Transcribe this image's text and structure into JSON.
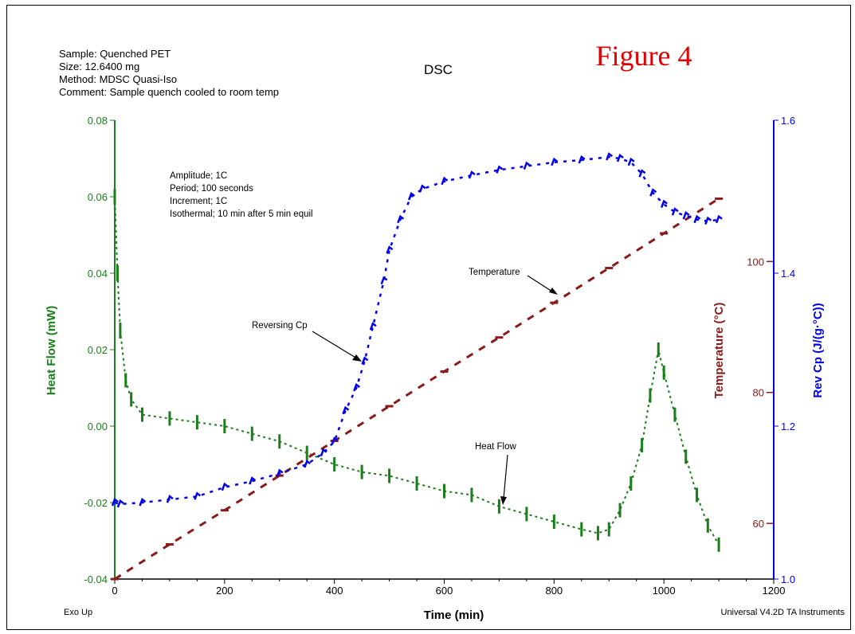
{
  "header": {
    "sample_lines": [
      "Sample: Quenched PET",
      "Size:  12.6400 mg",
      "Method: MDSC Quasi-Iso",
      "Comment: Sample quench cooled to room temp"
    ],
    "title": "DSC",
    "figure_label": "Figure 4"
  },
  "notes": {
    "params": [
      "Amplitude; 1C",
      "Period; 100 seconds",
      "Increment; 1C",
      "Isothermal; 10 min after 5 min equil"
    ]
  },
  "annotations": {
    "temperature": "Temperature",
    "reversing_cp": "Reversing Cp",
    "heat_flow": "Heat Flow"
  },
  "footer": {
    "exo": "Exo Up",
    "instrument": "Universal V4.2D TA Instruments"
  },
  "colors": {
    "heat_flow": "#1a7f1a",
    "temperature": "#8b1a1a",
    "rev_cp": "#0000ee",
    "axis": "#000000"
  },
  "chart_data": {
    "type": "scatter",
    "title": "DSC",
    "x_axis": {
      "label": "Time (min)",
      "range": [
        0,
        1200
      ],
      "ticks": [
        0,
        200,
        400,
        600,
        800,
        1000,
        1200
      ]
    },
    "y_left": {
      "label": "Heat Flow (mW)",
      "range": [
        -0.04,
        0.08
      ],
      "ticks": [
        -0.04,
        -0.02,
        0.0,
        0.02,
        0.04,
        0.06,
        0.08
      ],
      "tick_labels": [
        "-0.04",
        "-0.02",
        "0.00",
        "0.02",
        "0.04",
        "0.06",
        "0.08"
      ]
    },
    "y_temp": {
      "label": "Temperature (°C)",
      "ticks": [
        60,
        80,
        100
      ]
    },
    "y_right": {
      "label": "Rev Cp (J/(g·°C))",
      "range": [
        1.0,
        1.6
      ],
      "ticks": [
        1.0,
        1.2,
        1.4,
        1.6
      ],
      "tick_labels": [
        "1.0",
        "1.2",
        "1.4",
        "1.6"
      ]
    },
    "series": [
      {
        "name": "Heat Flow",
        "axis": "left",
        "x": [
          0,
          5,
          10,
          20,
          30,
          50,
          100,
          150,
          200,
          250,
          300,
          350,
          400,
          450,
          500,
          550,
          600,
          650,
          700,
          750,
          800,
          850,
          880,
          900,
          920,
          940,
          960,
          975,
          990,
          1000,
          1020,
          1040,
          1060,
          1080,
          1100
        ],
        "y": [
          0.06,
          0.04,
          0.025,
          0.012,
          0.007,
          0.003,
          0.002,
          0.001,
          0.0,
          -0.002,
          -0.004,
          -0.007,
          -0.01,
          -0.012,
          -0.013,
          -0.015,
          -0.017,
          -0.018,
          -0.021,
          -0.023,
          -0.025,
          -0.027,
          -0.028,
          -0.027,
          -0.022,
          -0.015,
          -0.005,
          0.008,
          0.02,
          0.014,
          0.003,
          -0.008,
          -0.018,
          -0.026,
          -0.031
        ]
      },
      {
        "name": "Temperature",
        "axis": "temp",
        "x": [
          0,
          100,
          200,
          300,
          400,
          500,
          600,
          700,
          800,
          900,
          1000,
          1100
        ],
        "y": [
          51.5,
          56.8,
          62.0,
          67.3,
          72.6,
          77.9,
          83.2,
          88.4,
          93.7,
          99.0,
          104.3,
          109.6
        ]
      },
      {
        "name": "Reversing Cp",
        "axis": "right",
        "x": [
          0,
          10,
          50,
          100,
          150,
          200,
          250,
          300,
          350,
          380,
          400,
          420,
          440,
          455,
          470,
          490,
          500,
          520,
          540,
          560,
          600,
          650,
          700,
          750,
          800,
          850,
          900,
          920,
          940,
          960,
          980,
          1000,
          1020,
          1040,
          1060,
          1080,
          1100
        ],
        "y": [
          1.1,
          1.098,
          1.1,
          1.104,
          1.108,
          1.12,
          1.128,
          1.138,
          1.15,
          1.165,
          1.18,
          1.22,
          1.25,
          1.285,
          1.33,
          1.39,
          1.43,
          1.47,
          1.5,
          1.51,
          1.52,
          1.528,
          1.535,
          1.54,
          1.545,
          1.548,
          1.552,
          1.55,
          1.545,
          1.53,
          1.505,
          1.49,
          1.48,
          1.475,
          1.47,
          1.468,
          1.47
        ]
      }
    ]
  }
}
